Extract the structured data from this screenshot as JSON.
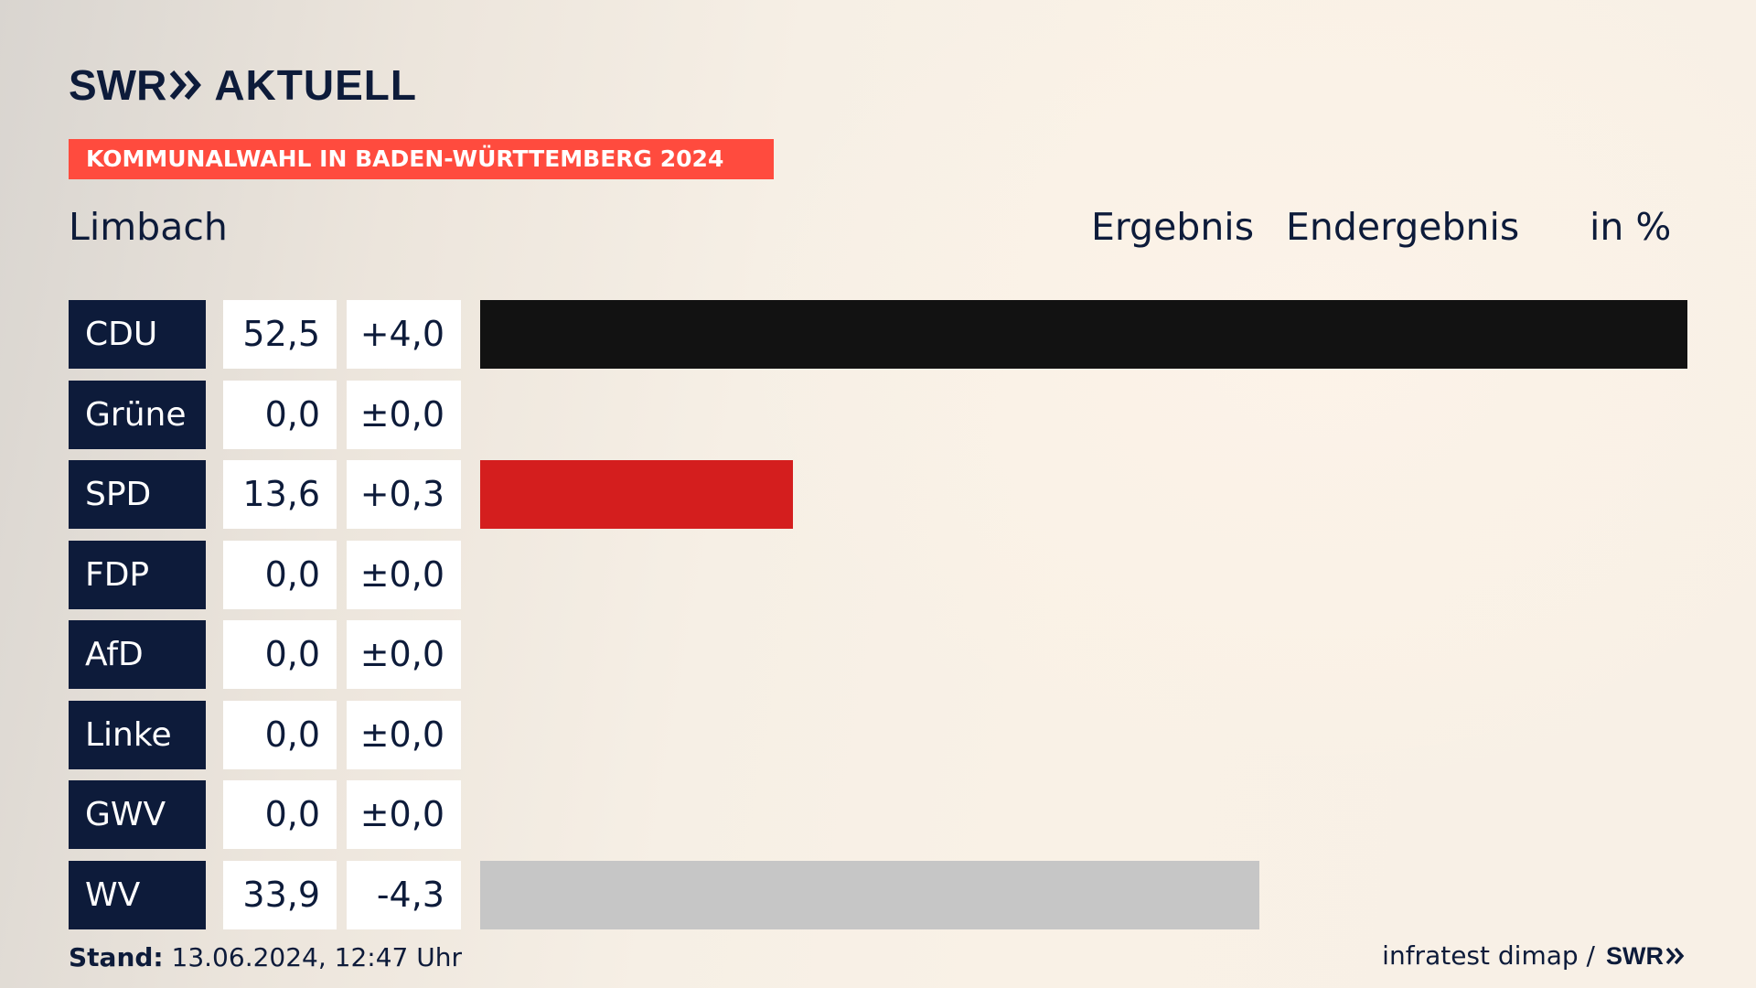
{
  "brand": {
    "logo_swr": "SWR",
    "logo_aktuell": "AKTUELL",
    "logo_icon": "double-chevron-icon",
    "text_color": "#0d1b3a"
  },
  "banner": {
    "text": "KOMMUNALWAHL IN BADEN-WÜRTTEMBERG 2024",
    "color": "#ff4b3e"
  },
  "header": {
    "region": "Limbach",
    "col_result": "Ergebnis",
    "col_status": "Endergebnis",
    "col_unit": "in %"
  },
  "chart_data": {
    "type": "bar",
    "orientation": "horizontal",
    "unit": "%",
    "categories": [
      "CDU",
      "Grüne",
      "SPD",
      "FDP",
      "AfD",
      "Linke",
      "GWV",
      "WV"
    ],
    "values": [
      52.5,
      0.0,
      13.6,
      0.0,
      0.0,
      0.0,
      0.0,
      33.9
    ],
    "value_labels": [
      "52,5",
      "0,0",
      "13,6",
      "0,0",
      "0,0",
      "0,0",
      "0,0",
      "33,9"
    ],
    "change_labels": [
      "+4,0",
      "±0,0",
      "+0,3",
      "±0,0",
      "±0,0",
      "±0,0",
      "±0,0",
      "-4,3"
    ],
    "changes": [
      4.0,
      0.0,
      0.3,
      0.0,
      0.0,
      0.0,
      0.0,
      -4.3
    ],
    "colors": [
      "#121212",
      "#3a8a2e",
      "#d41e1e",
      "#ffd500",
      "#1e7fc7",
      "#c2185b",
      "#6d6d6d",
      "#c6c6c6"
    ],
    "xlim": [
      0,
      52.5
    ]
  },
  "footer": {
    "stand_label": "Stand:",
    "stand_value": "13.06.2024, 12:47 Uhr",
    "source": "infratest dimap /",
    "source_brand": "SWR"
  }
}
